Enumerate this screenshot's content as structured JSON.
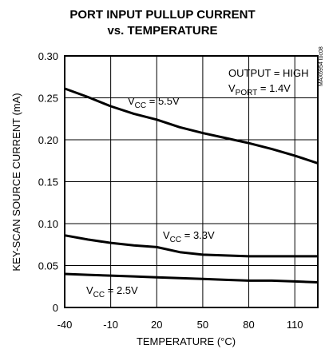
{
  "chart_data": {
    "type": "line",
    "title_line1": "PORT INPUT PULLUP CURRENT",
    "title_line2": "vs. TEMPERATURE",
    "xlabel": "TEMPERATURE (°C)",
    "ylabel": "KEY-SCAN SOURCE CURRENT (mA)",
    "xlim": [
      -40,
      125
    ],
    "ylim": [
      0,
      0.3
    ],
    "x_ticks": [
      "-40",
      "-10",
      "20",
      "50",
      "80",
      "110"
    ],
    "y_ticks": [
      "0",
      "0.05",
      "0.10",
      "0.15",
      "0.20",
      "0.25",
      "0.30"
    ],
    "grid": true,
    "annotation_output_text": "OUTPUT = HIGH",
    "annotation_vport": {
      "main": "V",
      "sub": "PORT",
      "rest": " = 1.4V"
    },
    "watermark": "MAX6954 toc08",
    "series": [
      {
        "label_main": "V",
        "label_sub": "CC",
        "label_rest": " = 5.5V",
        "x": [
          -40,
          -25,
          -10,
          5,
          20,
          35,
          50,
          65,
          80,
          95,
          110,
          125
        ],
        "y": [
          0.261,
          0.251,
          0.24,
          0.231,
          0.224,
          0.215,
          0.208,
          0.202,
          0.196,
          0.189,
          0.181,
          0.172
        ]
      },
      {
        "label_main": "V",
        "label_sub": "CC",
        "label_rest": " = 3.3V",
        "x": [
          -40,
          -25,
          -10,
          5,
          20,
          35,
          50,
          65,
          80,
          95,
          110,
          125
        ],
        "y": [
          0.086,
          0.081,
          0.077,
          0.074,
          0.072,
          0.066,
          0.063,
          0.062,
          0.061,
          0.061,
          0.061,
          0.061
        ]
      },
      {
        "label_main": "V",
        "label_sub": "CC",
        "label_rest": " = 2.5V",
        "x": [
          -40,
          -25,
          -10,
          5,
          20,
          35,
          50,
          65,
          80,
          95,
          110,
          125
        ],
        "y": [
          0.04,
          0.039,
          0.038,
          0.037,
          0.036,
          0.035,
          0.034,
          0.033,
          0.032,
          0.032,
          0.031,
          0.03
        ]
      }
    ]
  }
}
